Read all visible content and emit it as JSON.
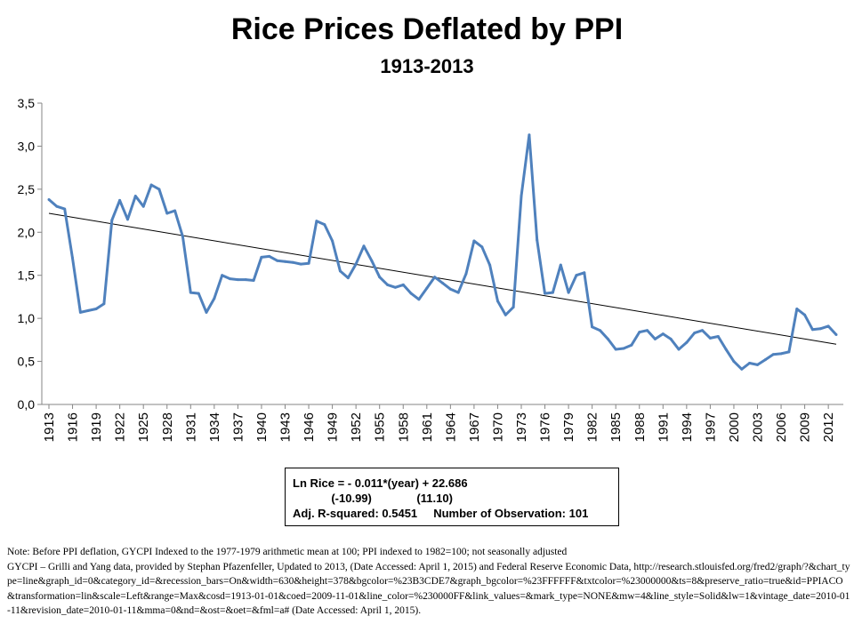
{
  "chart_data": {
    "type": "line",
    "title": "Rice Prices Deflated by PPI",
    "subtitle": "1913-2013",
    "xlabel": "",
    "ylabel": "",
    "x_ticks": [
      "1913",
      "1916",
      "1919",
      "1922",
      "1925",
      "1928",
      "1931",
      "1934",
      "1937",
      "1940",
      "1943",
      "1946",
      "1949",
      "1952",
      "1955",
      "1958",
      "1961",
      "1964",
      "1967",
      "1970",
      "1973",
      "1976",
      "1979",
      "1982",
      "1985",
      "1988",
      "1991",
      "1994",
      "1997",
      "2000",
      "2003",
      "2006",
      "2009",
      "2012"
    ],
    "y_ticks": [
      "0,0",
      "0,5",
      "1,0",
      "1,5",
      "2,0",
      "2,5",
      "3,0",
      "3,5"
    ],
    "ylim": [
      0,
      3.5
    ],
    "xlim": [
      1913,
      2013
    ],
    "grid": false,
    "series": [
      {
        "color": "#4F81BD",
        "x": [
          1913,
          1914,
          1915,
          1916,
          1917,
          1918,
          1919,
          1920,
          1921,
          1922,
          1923,
          1924,
          1925,
          1926,
          1927,
          1928,
          1929,
          1930,
          1931,
          1932,
          1933,
          1934,
          1935,
          1936,
          1937,
          1938,
          1939,
          1940,
          1941,
          1942,
          1943,
          1944,
          1945,
          1946,
          1947,
          1948,
          1949,
          1950,
          1951,
          1952,
          1953,
          1954,
          1955,
          1956,
          1957,
          1958,
          1959,
          1960,
          1961,
          1962,
          1963,
          1964,
          1965,
          1966,
          1967,
          1968,
          1969,
          1970,
          1971,
          1972,
          1973,
          1974,
          1975,
          1976,
          1977,
          1978,
          1979,
          1980,
          1981,
          1982,
          1983,
          1984,
          1985,
          1986,
          1987,
          1988,
          1989,
          1990,
          1991,
          1992,
          1993,
          1994,
          1995,
          1996,
          1997,
          1998,
          1999,
          2000,
          2001,
          2002,
          2003,
          2004,
          2005,
          2006,
          2007,
          2008,
          2009,
          2010,
          2011,
          2012,
          2013
        ],
        "y": [
          2.38,
          2.3,
          2.27,
          1.7,
          1.07,
          1.09,
          1.11,
          1.17,
          2.14,
          2.37,
          2.15,
          2.42,
          2.3,
          2.55,
          2.5,
          2.22,
          2.25,
          1.95,
          1.3,
          1.29,
          1.07,
          1.23,
          1.5,
          1.46,
          1.45,
          1.45,
          1.44,
          1.71,
          1.72,
          1.67,
          1.66,
          1.65,
          1.63,
          1.64,
          2.13,
          2.09,
          1.9,
          1.55,
          1.47,
          1.63,
          1.84,
          1.67,
          1.48,
          1.39,
          1.36,
          1.39,
          1.29,
          1.22,
          1.35,
          1.48,
          1.41,
          1.34,
          1.3,
          1.52,
          1.9,
          1.83,
          1.62,
          1.2,
          1.04,
          1.13,
          2.42,
          3.13,
          1.91,
          1.29,
          1.3,
          1.62,
          1.3,
          1.5,
          1.53,
          0.9,
          0.86,
          0.76,
          0.64,
          0.65,
          0.69,
          0.84,
          0.86,
          0.76,
          0.82,
          0.76,
          0.64,
          0.72,
          0.83,
          0.86,
          0.77,
          0.79,
          0.64,
          0.5,
          0.41,
          0.48,
          0.46,
          0.52,
          0.58,
          0.59,
          0.61,
          1.11,
          1.04,
          0.87,
          0.88,
          0.91,
          0.81
        ]
      },
      {
        "type": "trendline",
        "color": "#000000",
        "x": [
          1913,
          2013
        ],
        "y": [
          2.22,
          0.7
        ]
      }
    ]
  },
  "regression_box": {
    "line1": "Ln Rice = - 0.011*(year) + 22.686",
    "line2": "            (-10.99)              (11.10)",
    "line3": "Adj. R-squared: 0.5451     Number of Observation: 101"
  },
  "note": {
    "line1": "Note: Before PPI deflation, GYCPI Indexed to the 1977-1979 arithmetic mean at 100; PPI indexed to 1982=100; not seasonally adjusted",
    "line2": "GYCPI – Grilli and Yang data, provided by Stephan Pfazenfeller, Updated to 2013, (Date Accessed: April 1, 2015) and Federal Reserve Economic Data, http://research.stlouisfed.org/fred2/graph/?&chart_type=line&graph_id=0&category_id=&recession_bars=On&width=630&height=378&bgcolor=%23B3CDE7&graph_bgcolor=%23FFFFFF&txtcolor=%23000000&ts=8&preserve_ratio=true&id=PPIACO&transformation=lin&scale=Left&range=Max&cosd=1913-01-01&coed=2009-11-01&line_color=%230000FF&link_values=&mark_type=NONE&mw=4&line_style=Solid&lw=1&vintage_date=2010-01-11&revision_date=2010-01-11&mma=0&nd=&ost=&oet=&fml=a# (Date Accessed: April 1, 2015)."
  }
}
